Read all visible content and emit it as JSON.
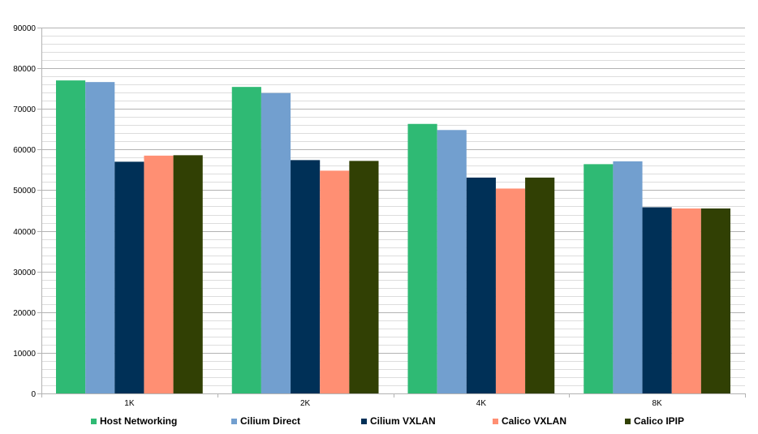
{
  "chart_data": {
    "type": "bar",
    "categories": [
      "1K",
      "2K",
      "4K",
      "8K"
    ],
    "series": [
      {
        "name": "Host Networking",
        "color": "#2fba74",
        "values": [
          77000,
          75400,
          66300,
          56400
        ]
      },
      {
        "name": "Cilium Direct",
        "color": "#729fcf",
        "values": [
          76600,
          73900,
          64800,
          57100
        ]
      },
      {
        "name": "Cilium VXLAN",
        "color": "#003057",
        "values": [
          57000,
          57400,
          53100,
          45800
        ]
      },
      {
        "name": "Calico VXLAN",
        "color": "#ff8f73",
        "values": [
          58500,
          54800,
          50400,
          45500
        ]
      },
      {
        "name": "Calico IPIP",
        "color": "#314004",
        "values": [
          58600,
          57200,
          53100,
          45500
        ]
      }
    ],
    "ylim": [
      0,
      90000
    ],
    "yticks": [
      0,
      10000,
      20000,
      30000,
      40000,
      50000,
      60000,
      70000,
      80000,
      90000
    ],
    "minor_grid_step": 2000,
    "grid": true,
    "legend_position": "bottom",
    "title": "",
    "xlabel": "",
    "ylabel": ""
  }
}
